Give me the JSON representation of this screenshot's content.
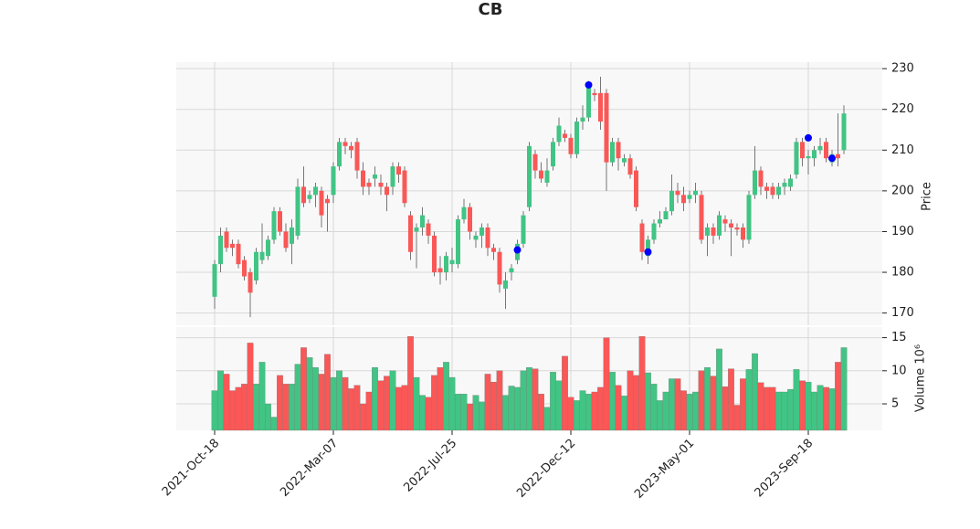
{
  "chart_data": {
    "type": "candlestick",
    "title": "CB",
    "ylabel": "Price",
    "volume_label": "Volume  10⁶",
    "categories": [
      "2021-Oct-18",
      null,
      null,
      null,
      null,
      null,
      null,
      null,
      null,
      null,
      null,
      null,
      null,
      null,
      null,
      null,
      null,
      null,
      null,
      null,
      "2022-Mar-07",
      null,
      null,
      null,
      null,
      null,
      null,
      null,
      null,
      null,
      null,
      null,
      null,
      null,
      null,
      null,
      null,
      null,
      null,
      null,
      "2022-Jul-25",
      null,
      null,
      null,
      null,
      null,
      null,
      null,
      null,
      null,
      null,
      null,
      null,
      null,
      null,
      null,
      null,
      null,
      null,
      null,
      "2022-Dec-12",
      null,
      null,
      null,
      null,
      null,
      null,
      null,
      null,
      null,
      null,
      null,
      null,
      null,
      null,
      null,
      null,
      null,
      null,
      null,
      "2023-May-01",
      null,
      null,
      null,
      null,
      null,
      null,
      null,
      null,
      null,
      null,
      null,
      null,
      null,
      null,
      null,
      null,
      null,
      null,
      null,
      "2023-Sep-18",
      null,
      null,
      null,
      null,
      null,
      null
    ],
    "open": [
      174,
      182,
      190,
      187,
      187,
      183,
      180,
      178,
      183,
      184,
      188,
      195,
      190,
      187,
      189,
      201,
      198,
      199,
      200,
      198,
      199,
      206,
      212,
      211,
      212,
      205,
      202,
      203,
      202,
      201,
      201,
      206,
      205,
      194,
      190,
      191,
      192,
      189,
      181,
      180,
      182,
      182,
      193,
      196,
      188,
      189,
      191,
      186,
      185,
      176,
      180,
      183,
      187,
      196,
      209,
      205,
      202,
      206,
      212,
      214,
      213,
      209,
      217,
      218,
      224,
      224,
      224,
      207,
      212,
      207,
      208,
      205,
      192,
      184,
      188,
      192,
      193,
      195,
      200,
      199,
      198,
      199,
      199,
      189,
      191,
      189,
      193,
      192,
      191,
      191,
      188,
      199,
      205,
      201,
      201,
      199,
      201,
      201,
      204,
      212,
      208,
      208,
      210,
      212,
      207,
      209,
      210
    ],
    "high": [
      183,
      191,
      191,
      188,
      188,
      184,
      181,
      186,
      192,
      189,
      196,
      196,
      192,
      193,
      203,
      206,
      200,
      202,
      201,
      199,
      207,
      213,
      213,
      212,
      213,
      207,
      203,
      206,
      204,
      202,
      207,
      207,
      206,
      195,
      192,
      196,
      193,
      190,
      184,
      185,
      186,
      194,
      198,
      197,
      190,
      192,
      192,
      187,
      186,
      180,
      182,
      188,
      195,
      212,
      210,
      207,
      208,
      213,
      218,
      215,
      214,
      218,
      221,
      227,
      225,
      228,
      225,
      213,
      213,
      209,
      209,
      206,
      193,
      189,
      193,
      195,
      196,
      204,
      202,
      201,
      200,
      202,
      200,
      192,
      192,
      195,
      194,
      193,
      192,
      192,
      200,
      211,
      206,
      202,
      202,
      202,
      203,
      204,
      213,
      213,
      210,
      211,
      213,
      213,
      210,
      219,
      221
    ],
    "low": [
      171,
      180,
      185,
      184,
      181,
      178,
      169,
      177,
      182,
      183,
      187,
      189,
      185,
      182,
      188,
      196,
      197,
      196,
      191,
      190,
      197,
      205,
      209,
      208,
      203,
      199,
      199,
      201,
      199,
      195,
      199,
      202,
      196,
      183,
      181,
      189,
      187,
      179,
      177,
      178,
      180,
      181,
      192,
      188,
      186,
      186,
      184,
      183,
      175,
      171,
      178,
      182,
      186,
      195,
      203,
      202,
      201,
      205,
      211,
      212,
      208,
      208,
      215,
      217,
      222,
      215,
      200,
      206,
      205,
      206,
      203,
      195,
      183,
      182,
      187,
      191,
      193,
      194,
      197,
      195,
      197,
      197,
      187,
      184,
      187,
      188,
      190,
      184,
      189,
      186,
      187,
      198,
      199,
      198,
      198,
      198,
      199,
      200,
      203,
      206,
      204,
      206,
      209,
      207,
      206,
      206,
      209
    ],
    "close": [
      182,
      189,
      186,
      186,
      182,
      179,
      175,
      185,
      185,
      188,
      195,
      190,
      186,
      191,
      201,
      197,
      199,
      201,
      194,
      197,
      206,
      212,
      211,
      210,
      205,
      201,
      201,
      204,
      201,
      199,
      206,
      204,
      197,
      185,
      191,
      194,
      189,
      180,
      180,
      184,
      183,
      193,
      196,
      190,
      189,
      191,
      186,
      185,
      177,
      178,
      181,
      187,
      194,
      211,
      205,
      203,
      205,
      212,
      216,
      213,
      209,
      217,
      218,
      226,
      223.5,
      217,
      207,
      212,
      208,
      208,
      204,
      196,
      185,
      188,
      192,
      193,
      195,
      200,
      199,
      197,
      199,
      200,
      188,
      191,
      189,
      194,
      192,
      191,
      190.5,
      188,
      199,
      205,
      201,
      200,
      199,
      201,
      202,
      203,
      212,
      208,
      208.5,
      210,
      211,
      208,
      209,
      208,
      219
    ],
    "volume": [
      7,
      10,
      9.5,
      7,
      7.5,
      8,
      14.2,
      8,
      11.3,
      5,
      3,
      9.3,
      8,
      8,
      11,
      13.5,
      12,
      10.5,
      9.5,
      12.5,
      9,
      10,
      9,
      7.3,
      7.8,
      5,
      6.8,
      10.5,
      8.5,
      9.2,
      10,
      7.5,
      7.8,
      15.2,
      9,
      6.3,
      6,
      9.3,
      10.5,
      11.3,
      9,
      6.5,
      6.5,
      5,
      6.3,
      5.3,
      9.5,
      8.3,
      10,
      6.3,
      7.7,
      7.5,
      10,
      10.5,
      10.3,
      6.5,
      4.5,
      9.8,
      8.5,
      12.2,
      6,
      5.5,
      7,
      6.5,
      6.8,
      7.5,
      15,
      9.8,
      7.8,
      6.2,
      10,
      9.3,
      15.2,
      9.7,
      8,
      5.5,
      6.8,
      8.8,
      8.8,
      7,
      6.5,
      6.8,
      10,
      10.5,
      9.2,
      13.3,
      7.6,
      10.3,
      4.8,
      8.8,
      10.2,
      12.6,
      8.2,
      7.5,
      7.5,
      6.8,
      6.8,
      7.2,
      10.2,
      8.5,
      8.3,
      6.8,
      7.8,
      7.5,
      7.3,
      11.3,
      13.5
    ],
    "markers": {
      "color": "#0000ff",
      "values": [
        null,
        null,
        null,
        null,
        null,
        null,
        null,
        null,
        null,
        null,
        null,
        null,
        null,
        null,
        null,
        null,
        null,
        null,
        null,
        null,
        null,
        null,
        null,
        null,
        null,
        null,
        null,
        null,
        null,
        null,
        null,
        null,
        null,
        null,
        null,
        null,
        null,
        null,
        null,
        null,
        null,
        null,
        null,
        null,
        null,
        null,
        null,
        null,
        null,
        null,
        null,
        185.5,
        null,
        null,
        null,
        null,
        null,
        null,
        null,
        null,
        null,
        null,
        null,
        226,
        null,
        null,
        null,
        null,
        null,
        null,
        null,
        null,
        null,
        185,
        null,
        null,
        null,
        null,
        null,
        null,
        null,
        null,
        null,
        null,
        null,
        null,
        null,
        null,
        null,
        null,
        null,
        null,
        null,
        null,
        null,
        null,
        null,
        null,
        null,
        null,
        213,
        null,
        null,
        null,
        208,
        null,
        null
      ]
    },
    "up_color": "#41c484",
    "down_color": "#fa5757",
    "ylim": [
      167,
      231.6
    ],
    "yticks": [
      170,
      180,
      190,
      200,
      210,
      220,
      230
    ],
    "volume_ylim": [
      1,
      16.6
    ],
    "volume_ticks": [
      5,
      10,
      15
    ],
    "grid": true
  }
}
